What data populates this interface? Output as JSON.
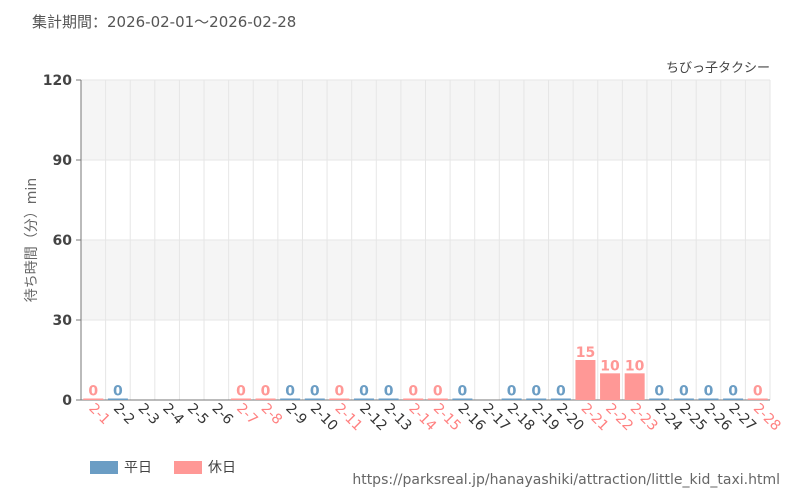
{
  "header": {
    "period_label": "集計期間：2026-02-01～2026-02-28"
  },
  "chart_data": {
    "type": "bar",
    "series_title": "ちびっ子タクシー",
    "ylabel": "待ち時間（分）min",
    "ylim": [
      0,
      120
    ],
    "yticks": [
      0,
      30,
      60,
      90,
      120
    ],
    "grid": true,
    "categories": [
      "2-1",
      "2-2",
      "2-3",
      "2-4",
      "2-5",
      "2-6",
      "2-7",
      "2-8",
      "2-9",
      "2-10",
      "2-11",
      "2-12",
      "2-13",
      "2-14",
      "2-15",
      "2-16",
      "2-17",
      "2-18",
      "2-19",
      "2-20",
      "2-21",
      "2-22",
      "2-23",
      "2-24",
      "2-25",
      "2-26",
      "2-27",
      "2-28"
    ],
    "values": [
      0,
      0,
      null,
      null,
      null,
      null,
      0,
      0,
      0,
      0,
      0,
      0,
      0,
      0,
      0,
      0,
      null,
      0,
      0,
      0,
      15,
      10,
      10,
      0,
      0,
      0,
      0,
      0
    ],
    "day_type": [
      "holiday",
      "weekday",
      "weekday",
      "weekday",
      "weekday",
      "weekday",
      "holiday",
      "holiday",
      "weekday",
      "weekday",
      "holiday",
      "weekday",
      "weekday",
      "holiday",
      "holiday",
      "weekday",
      "weekday",
      "weekday",
      "weekday",
      "weekday",
      "holiday",
      "holiday",
      "holiday",
      "weekday",
      "weekday",
      "weekday",
      "weekday",
      "holiday"
    ],
    "legend": [
      {
        "key": "weekday",
        "label": "平日",
        "color": "#6b9dc4"
      },
      {
        "key": "holiday",
        "label": "休日",
        "color": "#ff9896"
      }
    ],
    "legend_position": "bottom-left"
  },
  "colors": {
    "weekday": "#6b9dc4",
    "holiday": "#ff9896",
    "weekday_label": "#333333",
    "holiday_label": "#ff8080",
    "band": "#f5f5f5",
    "grid": "#e6e6e6",
    "axis": "#777777"
  },
  "footer": {
    "source_url": "https://parksreal.jp/hanayashiki/attraction/little_kid_taxi.html"
  }
}
